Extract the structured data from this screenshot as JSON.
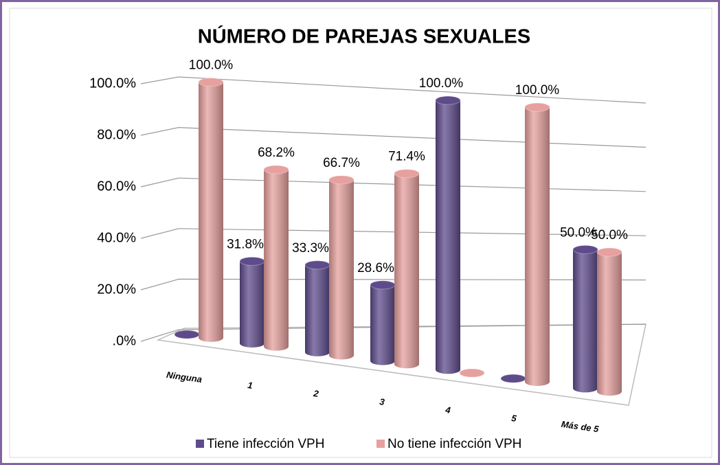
{
  "chart_data": {
    "type": "bar3d",
    "title": "NÚMERO DE PAREJAS SEXUALES",
    "categories": [
      "Ninguna",
      "1",
      "2",
      "3",
      "4",
      "5",
      "Más de 5"
    ],
    "series": [
      {
        "name": "Tiene infección VPH",
        "color": "#5e4b8b",
        "values": [
          0,
          31.8,
          33.3,
          28.6,
          100,
          0,
          50
        ],
        "value_labels": [
          null,
          "31.8%",
          "33.3%",
          "28.6%",
          "100.0%",
          null,
          "50.0%"
        ]
      },
      {
        "name": "No tiene infección VPH",
        "color": "#e6a09e",
        "values": [
          100,
          68.2,
          66.7,
          71.4,
          0,
          100,
          50
        ],
        "value_labels": [
          "100.0%",
          "68.2%",
          "66.7%",
          "71.4%",
          null,
          "100.0%",
          "50.0%"
        ]
      }
    ],
    "ylim": [
      0,
      100
    ],
    "yticks": [
      {
        "value": 0,
        "label": ".0%"
      },
      {
        "value": 20,
        "label": "20.0%"
      },
      {
        "value": 40,
        "label": "40.0%"
      },
      {
        "value": 60,
        "label": "60.0%"
      },
      {
        "value": 80,
        "label": "80.0%"
      },
      {
        "value": 100,
        "label": "100.0%"
      }
    ],
    "grid": true,
    "legend": "bottom"
  }
}
